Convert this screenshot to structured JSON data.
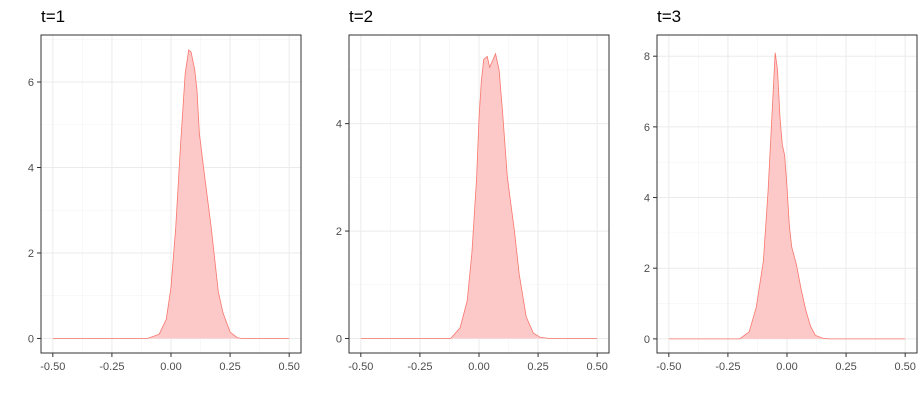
{
  "chart_data": [
    {
      "type": "area",
      "title": "t=1",
      "xlabel": "",
      "ylabel": "",
      "xlim": [
        -0.55,
        0.55
      ],
      "ylim": [
        -0.34,
        7.1
      ],
      "xticks": [
        -0.5,
        -0.25,
        0.0,
        0.25,
        0.5
      ],
      "xtick_labels": [
        "-0.50",
        "-0.25",
        "0.00",
        "0.25",
        "0.50"
      ],
      "yticks": [
        0,
        2,
        4,
        6
      ],
      "ytick_labels": [
        "0",
        "2",
        "4",
        "6"
      ],
      "grid": true,
      "legend": "none",
      "fill_color": "#fcc8c8",
      "line_color": "#f8766d",
      "x": [
        -0.5,
        -0.1,
        -0.05,
        -0.02,
        0.0,
        0.02,
        0.04,
        0.06,
        0.075,
        0.085,
        0.1,
        0.11,
        0.12,
        0.14,
        0.17,
        0.2,
        0.22,
        0.25,
        0.28,
        0.3,
        0.5
      ],
      "y": [
        0,
        0,
        0.1,
        0.45,
        1.2,
        2.6,
        4.5,
        6.2,
        6.75,
        6.7,
        6.3,
        5.8,
        4.8,
        3.9,
        2.6,
        1.1,
        0.6,
        0.15,
        0.02,
        0,
        0
      ]
    },
    {
      "type": "area",
      "title": "t=2",
      "xlabel": "",
      "ylabel": "",
      "xlim": [
        -0.55,
        0.55
      ],
      "ylim": [
        -0.27,
        5.65
      ],
      "xticks": [
        -0.5,
        -0.25,
        0.0,
        0.25,
        0.5
      ],
      "xtick_labels": [
        "-0.50",
        "-0.25",
        "0.00",
        "0.25",
        "0.50"
      ],
      "yticks": [
        0,
        2,
        4
      ],
      "ytick_labels": [
        "0",
        "2",
        "4"
      ],
      "grid": true,
      "legend": "none",
      "fill_color": "#fcc8c8",
      "line_color": "#f8766d",
      "x": [
        -0.5,
        -0.12,
        -0.08,
        -0.05,
        -0.03,
        -0.01,
        0.0,
        0.01,
        0.02,
        0.035,
        0.045,
        0.06,
        0.07,
        0.085,
        0.1,
        0.12,
        0.15,
        0.17,
        0.2,
        0.23,
        0.26,
        0.3,
        0.5
      ],
      "y": [
        0,
        0,
        0.2,
        0.7,
        1.6,
        3.0,
        4.1,
        4.8,
        5.2,
        5.25,
        5.05,
        5.2,
        5.3,
        5.0,
        4.2,
        3.0,
        2.0,
        1.2,
        0.4,
        0.1,
        0.02,
        0,
        0
      ]
    },
    {
      "type": "area",
      "title": "t=3",
      "xlabel": "",
      "ylabel": "",
      "xlim": [
        -0.55,
        0.55
      ],
      "ylim": [
        -0.4,
        8.6
      ],
      "xticks": [
        -0.5,
        -0.25,
        0.0,
        0.25,
        0.5
      ],
      "xtick_labels": [
        "-0.50",
        "-0.25",
        "0.00",
        "0.25",
        "0.50"
      ],
      "yticks": [
        0,
        2,
        4,
        6,
        8
      ],
      "ytick_labels": [
        "0",
        "2",
        "4",
        "6",
        "8"
      ],
      "grid": true,
      "legend": "none",
      "fill_color": "#fcc8c8",
      "line_color": "#f8766d",
      "x": [
        -0.5,
        -0.2,
        -0.16,
        -0.13,
        -0.1,
        -0.08,
        -0.06,
        -0.05,
        -0.04,
        -0.03,
        -0.02,
        -0.01,
        0.0,
        0.01,
        0.02,
        0.04,
        0.06,
        0.08,
        0.1,
        0.12,
        0.15,
        0.18,
        0.5
      ],
      "y": [
        0,
        0,
        0.2,
        0.9,
        2.2,
        4.2,
        6.8,
        8.1,
        7.6,
        6.3,
        5.5,
        5.2,
        4.3,
        3.2,
        2.6,
        2.1,
        1.4,
        0.8,
        0.35,
        0.1,
        0.02,
        0,
        0
      ]
    }
  ]
}
